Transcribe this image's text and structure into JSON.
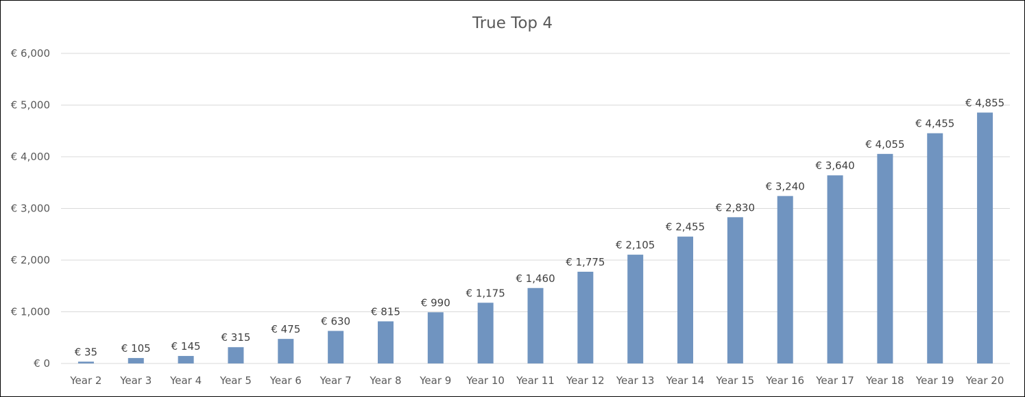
{
  "chart_data": {
    "type": "bar",
    "title": "True Top 4",
    "categories": [
      "Year 2",
      "Year 3",
      "Year 4",
      "Year 5",
      "Year 6",
      "Year 7",
      "Year 8",
      "Year 9",
      "Year 10",
      "Year 11",
      "Year 12",
      "Year 13",
      "Year 14",
      "Year 15",
      "Year 16",
      "Year 17",
      "Year 18",
      "Year 19",
      "Year 20"
    ],
    "values": [
      35,
      105,
      145,
      315,
      475,
      630,
      815,
      990,
      1175,
      1460,
      1775,
      2105,
      2455,
      2830,
      3240,
      3640,
      4055,
      4455,
      4855
    ],
    "data_labels": [
      "€ 35",
      "€ 105",
      "€ 145",
      "€ 315",
      "€ 475",
      "€ 630",
      "€ 815",
      "€ 990",
      "€ 1,175",
      "€ 1,460",
      "€ 1,775",
      "€ 2,105",
      "€ 2,455",
      "€ 2,830",
      "€ 3,240",
      "€ 3,640",
      "€ 4,055",
      "€ 4,455",
      "€ 4,855"
    ],
    "y_ticks": [
      0,
      1000,
      2000,
      3000,
      4000,
      5000,
      6000
    ],
    "y_tick_labels": [
      "€ 0",
      "€ 1,000",
      "€ 2,000",
      "€ 3,000",
      "€ 4,000",
      "€ 5,000",
      "€ 6,000"
    ],
    "ylim": [
      0,
      6000
    ],
    "xlabel": "",
    "ylabel": "",
    "grid": true,
    "legend": "none",
    "bar_color": "#7094c0",
    "grid_color": "#d9d9d9"
  }
}
